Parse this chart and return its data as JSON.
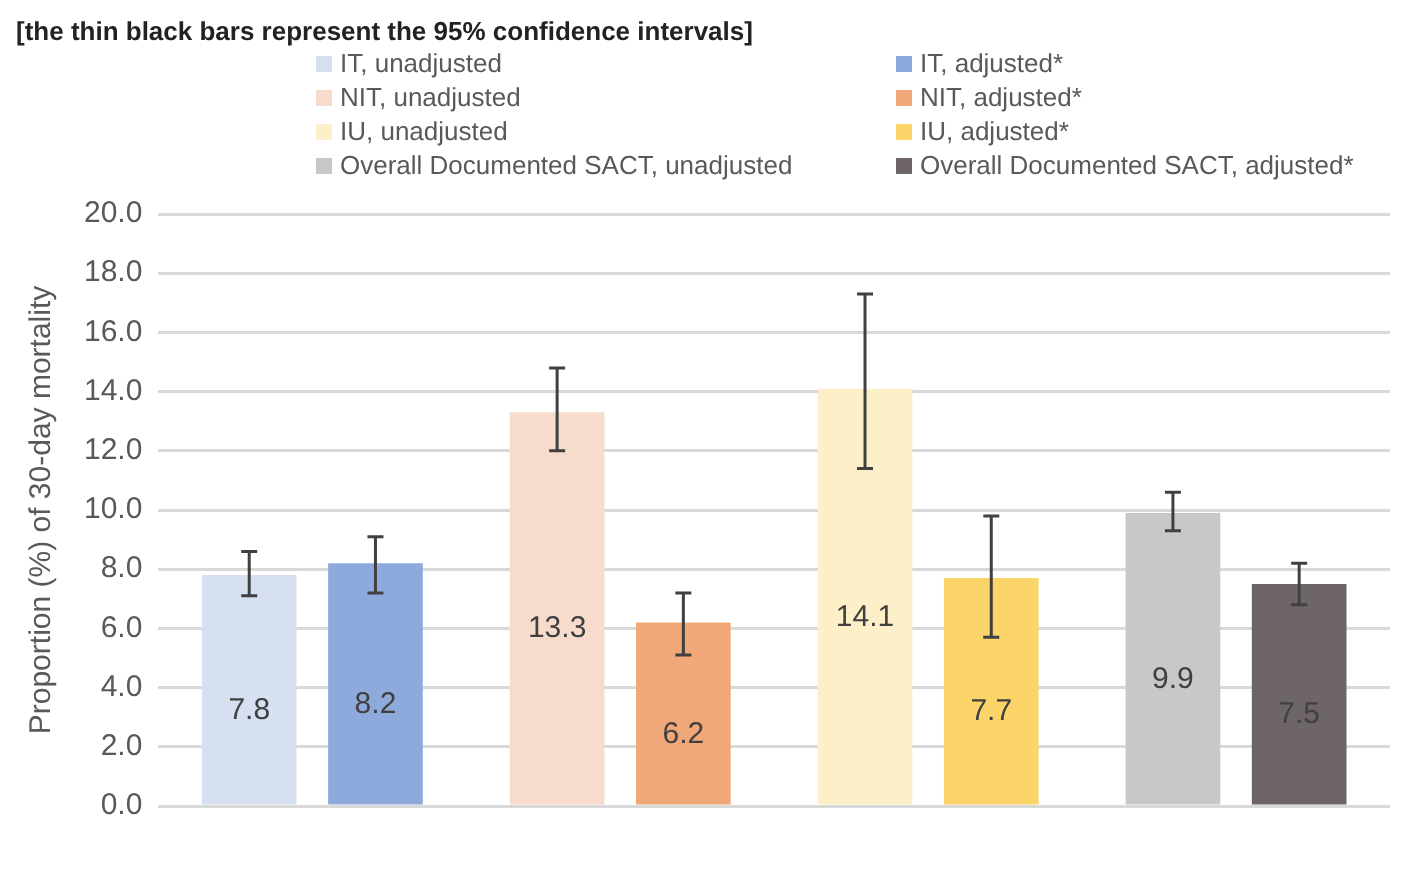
{
  "chart_data": {
    "type": "bar",
    "title": "[the thin black bars represent the 95% confidence intervals]",
    "ylabel": "Proportion (%) of 30-day mortality",
    "categories": [
      null,
      null,
      null,
      null
    ],
    "series": [
      {
        "name": "IT, unadjusted",
        "color": "#d6e0f0",
        "values": [
          7.8,
          null,
          null,
          null
        ],
        "errors": [
          [
            7.1,
            8.6
          ],
          null,
          null,
          null
        ]
      },
      {
        "name": "IT, adjusted*",
        "color": "#8eaadc",
        "values": [
          8.2,
          null,
          null,
          null
        ],
        "errors": [
          [
            7.2,
            9.1
          ],
          null,
          null,
          null
        ]
      },
      {
        "name": "NIT, unadjusted",
        "color": "#f8dccb",
        "values": [
          null,
          13.3,
          null,
          null
        ],
        "errors": [
          null,
          [
            12.0,
            14.8
          ],
          null,
          null
        ]
      },
      {
        "name": "NIT, adjusted*",
        "color": "#f0a878",
        "values": [
          null,
          6.2,
          null,
          null
        ],
        "errors": [
          null,
          [
            5.1,
            7.2
          ],
          null,
          null
        ]
      },
      {
        "name": "IU, unadjusted",
        "color": "#fdf0c8",
        "values": [
          null,
          null,
          14.1,
          null
        ],
        "errors": [
          null,
          null,
          [
            11.4,
            17.3
          ],
          null
        ]
      },
      {
        "name": "IU, adjusted*",
        "color": "#fbd56a",
        "values": [
          null,
          null,
          7.7,
          null
        ],
        "errors": [
          null,
          null,
          [
            5.7,
            9.8
          ],
          null
        ]
      },
      {
        "name": "Overall Documented SACT, unadjusted",
        "color": "#c8c8c8",
        "values": [
          null,
          null,
          null,
          9.9
        ],
        "errors": [
          null,
          null,
          null,
          [
            9.3,
            10.6
          ]
        ]
      },
      {
        "name": "Overall Documented SACT, adjusted*",
        "color": "#6e6666",
        "values": [
          null,
          null,
          null,
          7.5
        ],
        "errors": [
          null,
          null,
          null,
          [
            6.8,
            8.2
          ]
        ]
      }
    ],
    "ylim": [
      0,
      20
    ],
    "yticks": [
      {
        "value": 0,
        "label": "0.0"
      },
      {
        "value": 2,
        "label": "2.0"
      },
      {
        "value": 4,
        "label": "4.0"
      },
      {
        "value": 6,
        "label": "6.0"
      },
      {
        "value": 8,
        "label": "8.0"
      },
      {
        "value": 10,
        "label": "10.0"
      },
      {
        "value": 12,
        "label": "12.0"
      },
      {
        "value": 14,
        "label": "14.0"
      },
      {
        "value": 16,
        "label": "16.0"
      },
      {
        "value": 18,
        "label": "18.0"
      },
      {
        "value": 20,
        "label": "20.0"
      }
    ],
    "grid": "y",
    "legend": "top",
    "tick_labels": "y",
    "data_labels": true
  }
}
